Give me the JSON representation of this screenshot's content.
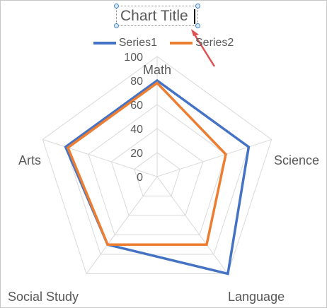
{
  "chart_data": {
    "type": "radar",
    "title": "Chart Title",
    "categories": [
      "Math",
      "Science",
      "Language",
      "Social Study",
      "Arts"
    ],
    "series": [
      {
        "name": "Series1",
        "color": "#4472C4",
        "values": [
          80,
          80,
          100,
          70,
          80
        ]
      },
      {
        "name": "Series2",
        "color": "#ED7D31",
        "values": [
          78,
          60,
          70,
          70,
          78
        ]
      }
    ],
    "radial_ticks": [
      0,
      20,
      40,
      60,
      80,
      100
    ],
    "rlim": [
      0,
      100
    ],
    "grid": true,
    "legend_position": "top"
  },
  "colors": {
    "grid": "#d9d9d9",
    "text": "#595959",
    "annotation_arrow": "#e05050"
  }
}
